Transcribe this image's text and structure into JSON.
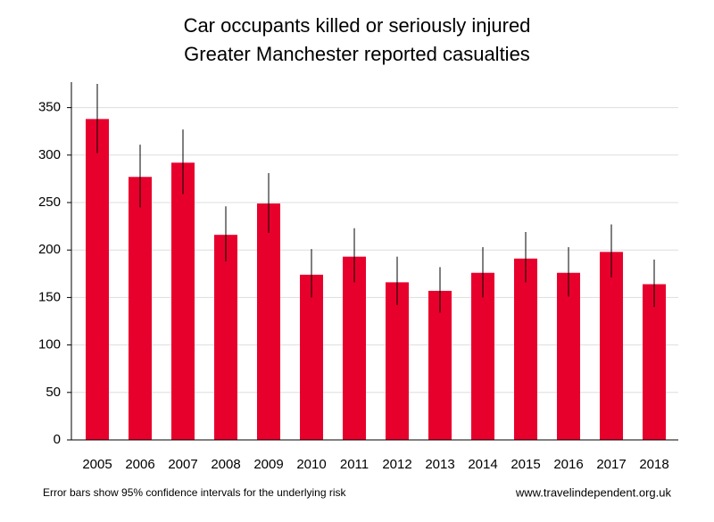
{
  "chart_data": {
    "type": "bar",
    "title": "Car occupants killed or seriously injured",
    "subtitle": "Greater Manchester reported casualties",
    "categories": [
      "2005",
      "2006",
      "2007",
      "2008",
      "2009",
      "2010",
      "2011",
      "2012",
      "2013",
      "2014",
      "2015",
      "2016",
      "2017",
      "2018"
    ],
    "values": [
      338,
      277,
      292,
      216,
      249,
      174,
      193,
      166,
      157,
      176,
      191,
      176,
      198,
      164
    ],
    "ci_low": [
      302,
      245,
      259,
      188,
      218,
      150,
      166,
      142,
      134,
      150,
      166,
      151,
      171,
      140
    ],
    "ci_high": [
      375,
      311,
      327,
      246,
      281,
      201,
      223,
      193,
      182,
      203,
      219,
      203,
      227,
      190
    ],
    "color": "#e8002d",
    "ylim": [
      0,
      375
    ],
    "yticks": [
      0,
      50,
      100,
      150,
      200,
      250,
      300,
      350
    ],
    "grid": true,
    "note": "Error bars show 95% confidence intervals for the underlying risk",
    "source": "www.travelindependent.org.uk"
  }
}
